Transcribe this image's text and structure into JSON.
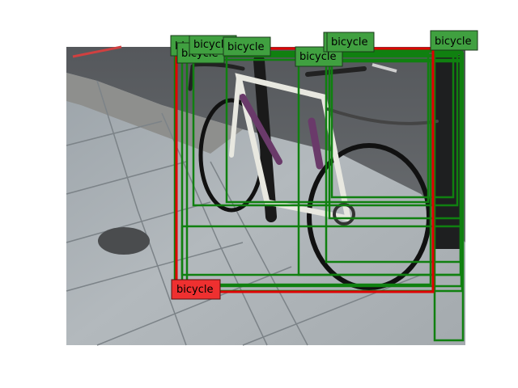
{
  "colors": {
    "ground_truth": "#e00000",
    "detection": "#108010",
    "label_gt_bg": "#ee3030",
    "label_det_bg": "#40a040"
  },
  "ground_truth": [
    {
      "label": "bicycle"
    }
  ],
  "detections": [
    {
      "label": "bicycle"
    },
    {
      "label": "bicycle"
    },
    {
      "label": "bicycle"
    },
    {
      "label": "bicycle"
    },
    {
      "label": "bicycle"
    },
    {
      "label": "bicycle"
    },
    {
      "label": "bicycle"
    },
    {
      "label": "bicycle"
    },
    {
      "label": "bicycle"
    },
    {
      "label": "bicycle"
    },
    {
      "label": "bicycle"
    }
  ]
}
